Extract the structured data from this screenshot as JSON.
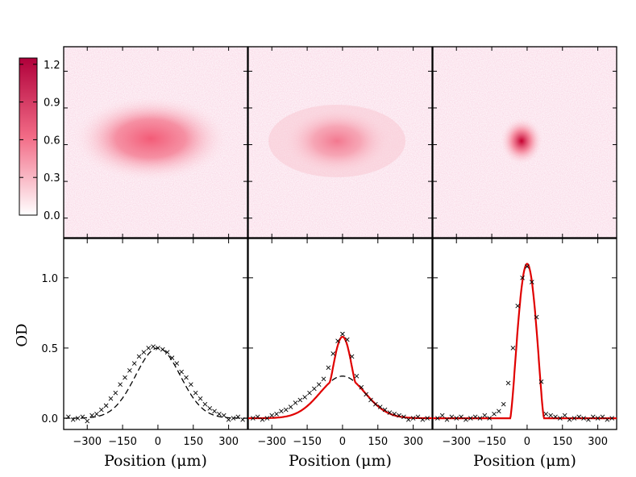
{
  "chart_data": {
    "type": "scatter",
    "colors": {
      "fit": "#e00000",
      "points": "#000000",
      "thermal": "#000000",
      "density": "#c8003c"
    },
    "colorbar": {
      "ticks": [
        0.0,
        0.3,
        0.6,
        0.9,
        1.2
      ],
      "tick_labels": [
        "0.0",
        "0.3",
        "0.6",
        "0.9",
        "1.2"
      ],
      "range": [
        0,
        1.25
      ]
    },
    "images": [
      {
        "name": "thermal-cloud",
        "peak": 0.5,
        "sx": 62,
        "sy": 34
      },
      {
        "name": "partial-condensate",
        "peak": 0.6,
        "sx": 42,
        "sy": 26
      },
      {
        "name": "pure-condensate",
        "peak": 1.1,
        "sx": 17,
        "sy": 19
      }
    ],
    "ylabel": "OD",
    "y_ticks": [
      0.0,
      0.5,
      1.0
    ],
    "y_tick_labels": [
      "0.0",
      "0.5",
      "1.0"
    ],
    "ylim": [
      -0.08,
      1.28
    ],
    "xlim": [
      -400,
      380
    ],
    "x_ticks": [
      -300,
      -150,
      0,
      150,
      300
    ],
    "x_tick_labels": [
      "−300",
      "−150",
      "0",
      "150",
      "300"
    ],
    "profiles": [
      {
        "xlabel": "Position (μm)",
        "thermal_fit": {
          "amplitude": 0.5,
          "sigma": 95
        },
        "condensate_fit": null,
        "points": [
          [
            -380,
            0.01
          ],
          [
            -360,
            -0.01
          ],
          [
            -340,
            0.0
          ],
          [
            -320,
            0.01
          ],
          [
            -300,
            -0.02
          ],
          [
            -280,
            0.02
          ],
          [
            -260,
            0.03
          ],
          [
            -240,
            0.06
          ],
          [
            -220,
            0.09
          ],
          [
            -200,
            0.14
          ],
          [
            -180,
            0.18
          ],
          [
            -160,
            0.24
          ],
          [
            -140,
            0.29
          ],
          [
            -120,
            0.34
          ],
          [
            -100,
            0.39
          ],
          [
            -80,
            0.44
          ],
          [
            -60,
            0.47
          ],
          [
            -40,
            0.5
          ],
          [
            -20,
            0.51
          ],
          [
            0,
            0.5
          ],
          [
            20,
            0.49
          ],
          [
            40,
            0.47
          ],
          [
            60,
            0.43
          ],
          [
            80,
            0.39
          ],
          [
            100,
            0.33
          ],
          [
            120,
            0.29
          ],
          [
            140,
            0.24
          ],
          [
            160,
            0.18
          ],
          [
            180,
            0.14
          ],
          [
            200,
            0.1
          ],
          [
            220,
            0.07
          ],
          [
            240,
            0.05
          ],
          [
            260,
            0.03
          ],
          [
            280,
            0.02
          ],
          [
            300,
            -0.01
          ],
          [
            320,
            0.0
          ],
          [
            340,
            0.01
          ],
          [
            360,
            -0.01
          ]
        ]
      },
      {
        "xlabel": "Position (μm)",
        "thermal_fit": {
          "amplitude": 0.3,
          "sigma": 95
        },
        "condensate_fit": {
          "amplitude": 0.28,
          "radius": 55
        },
        "points": [
          [
            -380,
            0.0
          ],
          [
            -360,
            0.01
          ],
          [
            -340,
            -0.01
          ],
          [
            -320,
            0.0
          ],
          [
            -300,
            0.02
          ],
          [
            -280,
            0.03
          ],
          [
            -260,
            0.05
          ],
          [
            -240,
            0.06
          ],
          [
            -220,
            0.08
          ],
          [
            -200,
            0.11
          ],
          [
            -180,
            0.13
          ],
          [
            -160,
            0.15
          ],
          [
            -140,
            0.18
          ],
          [
            -120,
            0.21
          ],
          [
            -100,
            0.24
          ],
          [
            -80,
            0.28
          ],
          [
            -60,
            0.36
          ],
          [
            -40,
            0.46
          ],
          [
            -20,
            0.55
          ],
          [
            0,
            0.6
          ],
          [
            20,
            0.56
          ],
          [
            40,
            0.44
          ],
          [
            60,
            0.3
          ],
          [
            80,
            0.22
          ],
          [
            100,
            0.17
          ],
          [
            120,
            0.13
          ],
          [
            140,
            0.1
          ],
          [
            160,
            0.08
          ],
          [
            180,
            0.06
          ],
          [
            200,
            0.04
          ],
          [
            220,
            0.03
          ],
          [
            240,
            0.02
          ],
          [
            260,
            0.01
          ],
          [
            280,
            -0.01
          ],
          [
            300,
            0.0
          ],
          [
            320,
            0.01
          ],
          [
            340,
            -0.01
          ],
          [
            360,
            0.0
          ]
        ]
      },
      {
        "xlabel": "Position (μm)",
        "thermal_fit": null,
        "condensate_fit": {
          "amplitude": 1.1,
          "radius": 72,
          "offset": 0.0
        },
        "points": [
          [
            -380,
            0.0
          ],
          [
            -360,
            0.02
          ],
          [
            -340,
            -0.01
          ],
          [
            -320,
            0.01
          ],
          [
            -300,
            0.0
          ],
          [
            -280,
            0.01
          ],
          [
            -260,
            -0.01
          ],
          [
            -240,
            0.0
          ],
          [
            -220,
            0.01
          ],
          [
            -200,
            0.0
          ],
          [
            -180,
            0.02
          ],
          [
            -160,
            0.0
          ],
          [
            -140,
            0.03
          ],
          [
            -120,
            0.05
          ],
          [
            -100,
            0.1
          ],
          [
            -80,
            0.25
          ],
          [
            -60,
            0.5
          ],
          [
            -40,
            0.8
          ],
          [
            -20,
            1.0
          ],
          [
            0,
            1.08
          ],
          [
            20,
            0.97
          ],
          [
            40,
            0.72
          ],
          [
            60,
            0.26
          ],
          [
            80,
            0.03
          ],
          [
            100,
            0.02
          ],
          [
            120,
            0.01
          ],
          [
            140,
            0.0
          ],
          [
            160,
            0.02
          ],
          [
            180,
            -0.01
          ],
          [
            200,
            0.0
          ],
          [
            220,
            0.01
          ],
          [
            240,
            0.0
          ],
          [
            260,
            -0.01
          ],
          [
            280,
            0.01
          ],
          [
            300,
            0.0
          ],
          [
            320,
            0.01
          ],
          [
            340,
            -0.01
          ],
          [
            360,
            0.0
          ]
        ]
      }
    ]
  }
}
